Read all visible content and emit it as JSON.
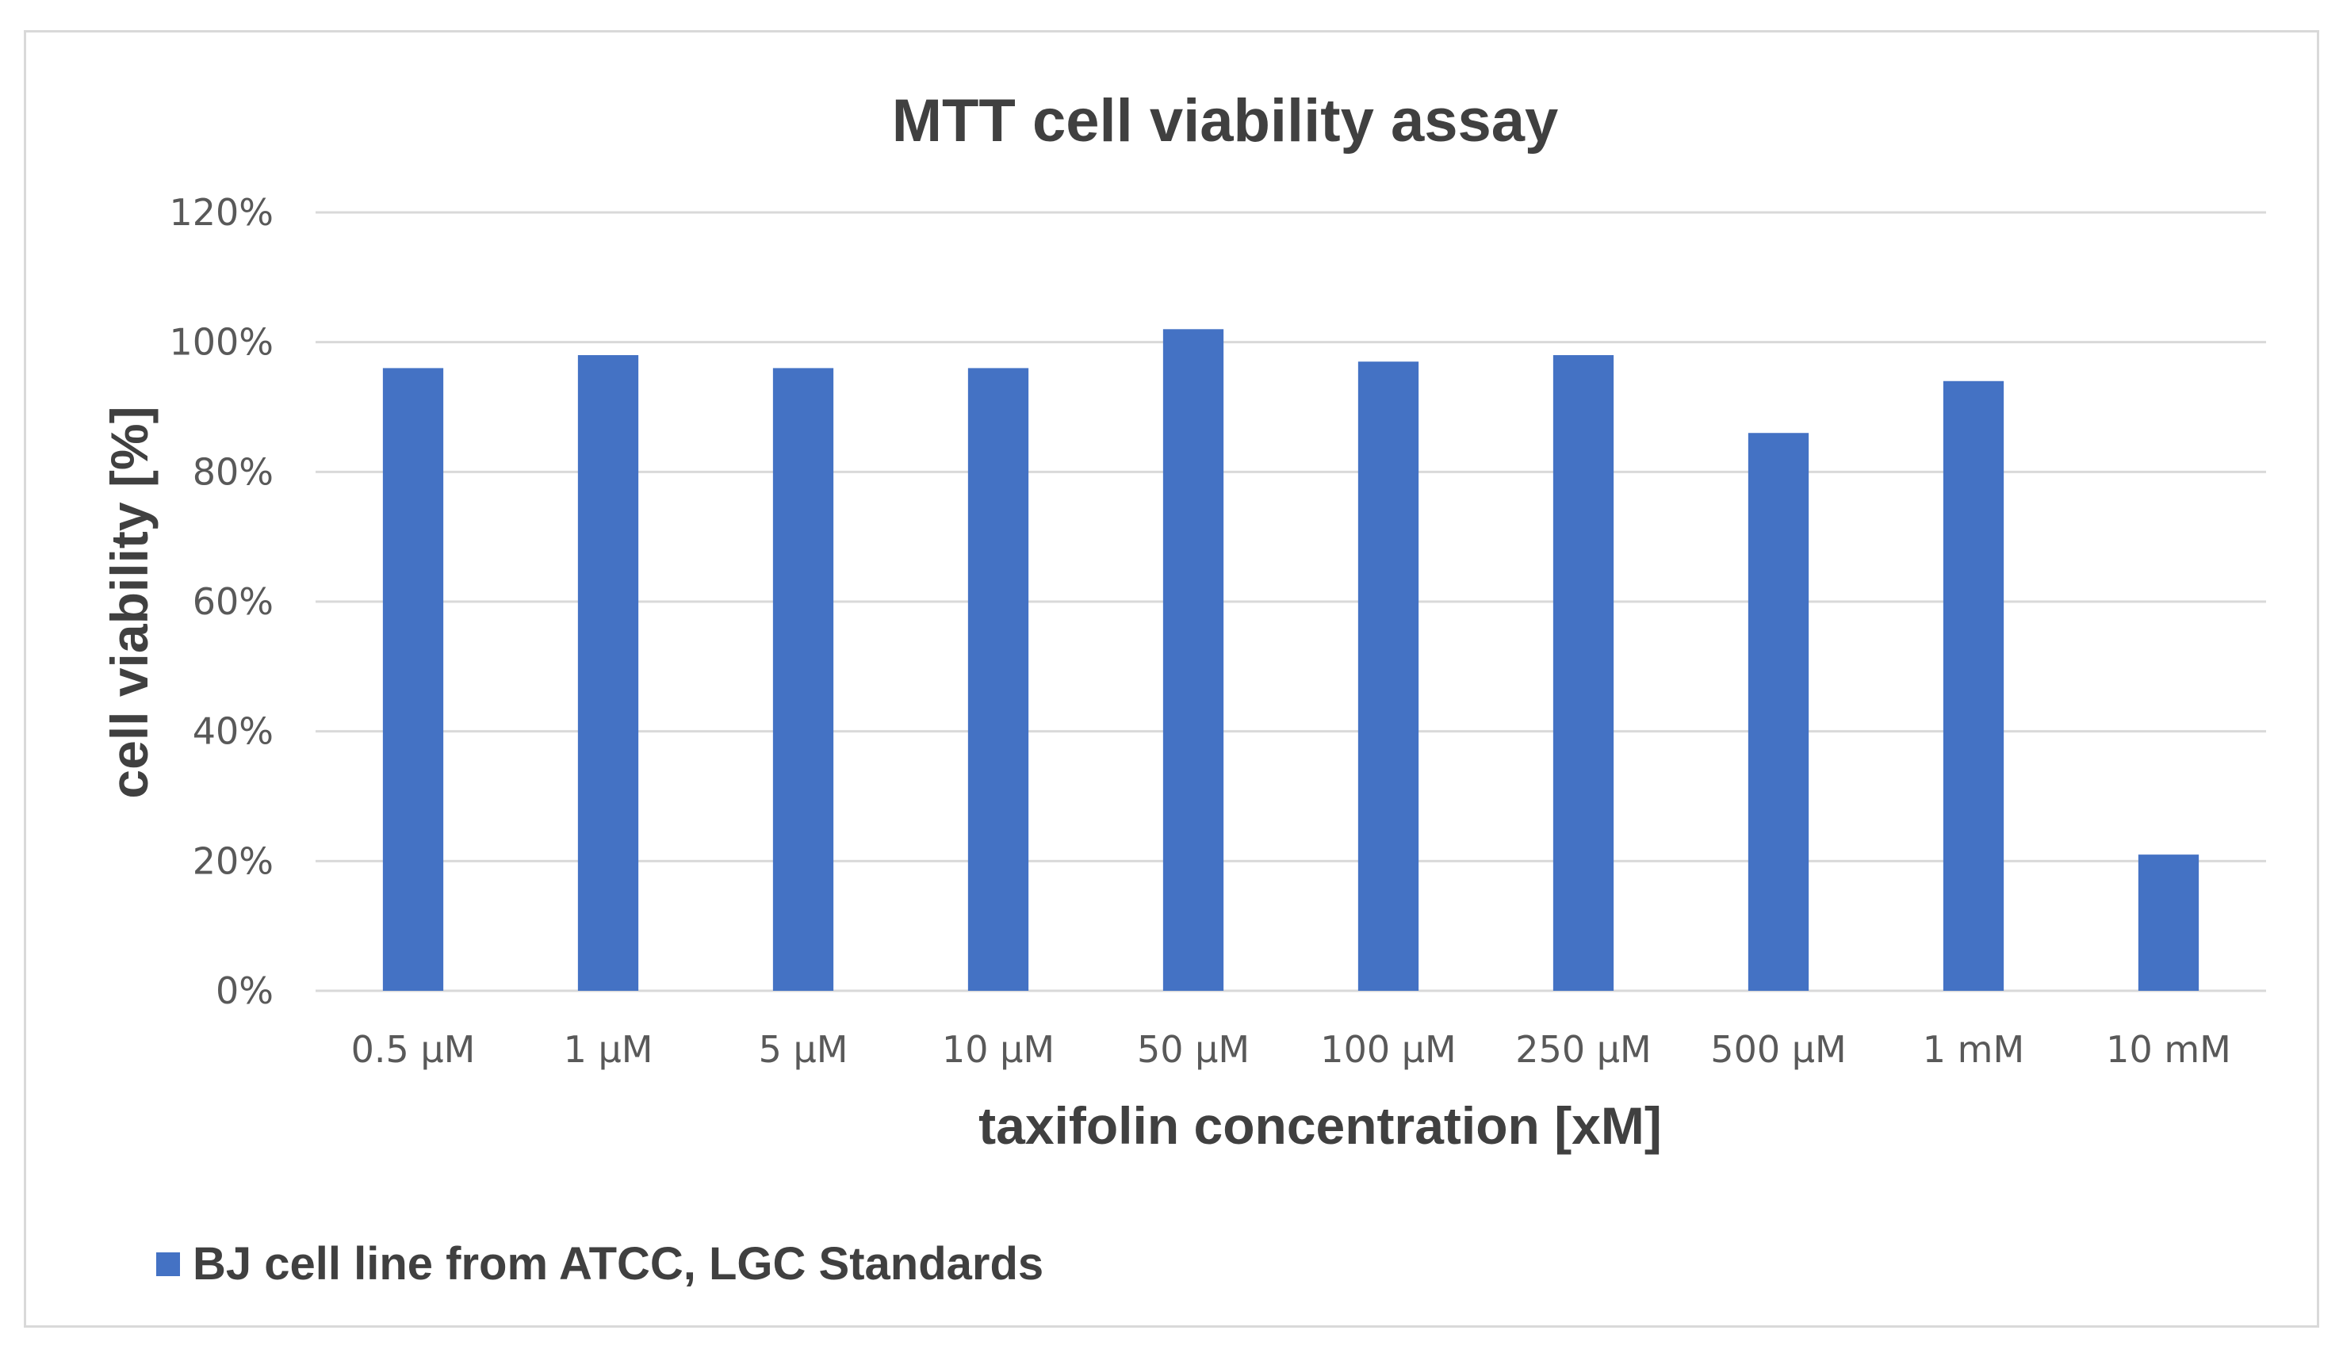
{
  "chart_data": {
    "type": "bar",
    "title": "MTT cell viability assay",
    "xlabel": "taxifolin concentration [xM]",
    "ylabel": "cell viability [%]",
    "ylim": [
      0,
      120
    ],
    "yticks": [
      "0%",
      "20%",
      "40%",
      "60%",
      "80%",
      "100%",
      "120%"
    ],
    "ytick_values": [
      0,
      20,
      40,
      60,
      80,
      100,
      120
    ],
    "categories": [
      "0.5 µM",
      "1 µM",
      "5 µM",
      "10 µM",
      "50 µM",
      "100 µM",
      "250 µM",
      "500 µM",
      "1 mM",
      "10 mM"
    ],
    "series": [
      {
        "name": "BJ cell line from ATCC, LGC Standards",
        "color": "#4472c4",
        "values": [
          96,
          98,
          96,
          96,
          102,
          97,
          98,
          86,
          94,
          21
        ]
      }
    ],
    "grid": true,
    "legend_position": "bottom-left"
  }
}
